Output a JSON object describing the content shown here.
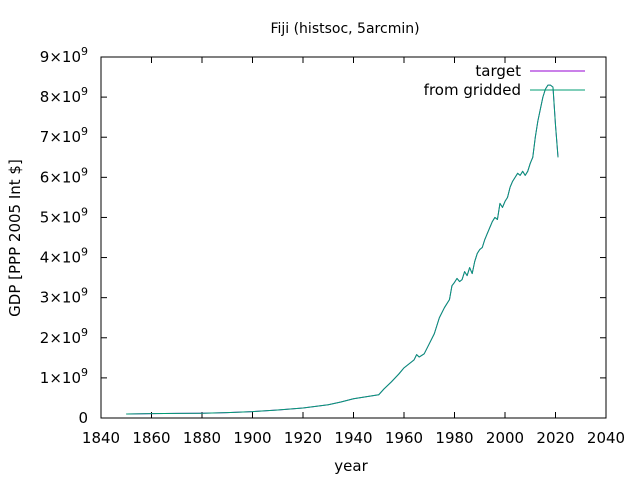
{
  "chart_data": {
    "type": "line",
    "title": "Fiji (histsoc, 5arcmin)",
    "xlabel": "year",
    "ylabel": "GDP [PPP 2005 Int $]",
    "xlim": [
      1840,
      2040
    ],
    "ylim": [
      0,
      9000000000
    ],
    "x_ticks": [
      {
        "value": 1840,
        "label": "1840"
      },
      {
        "value": 1860,
        "label": "1860"
      },
      {
        "value": 1880,
        "label": "1880"
      },
      {
        "value": 1900,
        "label": "1900"
      },
      {
        "value": 1920,
        "label": "1920"
      },
      {
        "value": 1940,
        "label": "1940"
      },
      {
        "value": 1960,
        "label": "1960"
      },
      {
        "value": 1980,
        "label": "1980"
      },
      {
        "value": 2000,
        "label": "2000"
      },
      {
        "value": 2020,
        "label": "2020"
      },
      {
        "value": 2040,
        "label": "2040"
      }
    ],
    "y_ticks": [
      {
        "value": 0,
        "mant": "0",
        "exp": ""
      },
      {
        "value": 1000000000,
        "mant": "1×10",
        "exp": "9"
      },
      {
        "value": 2000000000,
        "mant": "2×10",
        "exp": "9"
      },
      {
        "value": 3000000000,
        "mant": "3×10",
        "exp": "9"
      },
      {
        "value": 4000000000,
        "mant": "4×10",
        "exp": "9"
      },
      {
        "value": 5000000000,
        "mant": "5×10",
        "exp": "9"
      },
      {
        "value": 6000000000,
        "mant": "6×10",
        "exp": "9"
      },
      {
        "value": 7000000000,
        "mant": "7×10",
        "exp": "9"
      },
      {
        "value": 8000000000,
        "mant": "8×10",
        "exp": "9"
      },
      {
        "value": 9000000000,
        "mant": "9×10",
        "exp": "9"
      }
    ],
    "grid": false,
    "legend_position": "top-right",
    "series": [
      {
        "name": "target",
        "color": "#9400d3",
        "x": [
          1850,
          1860,
          1870,
          1880,
          1890,
          1900,
          1910,
          1920,
          1930,
          1935,
          1940,
          1945,
          1950,
          1952,
          1955,
          1958,
          1960,
          1962,
          1964,
          1965,
          1966,
          1968,
          1970,
          1972,
          1974,
          1976,
          1978,
          1979,
          1980,
          1981,
          1982,
          1983,
          1984,
          1985,
          1986,
          1987,
          1988,
          1989,
          1990,
          1991,
          1992,
          1993,
          1994,
          1995,
          1996,
          1997,
          1998,
          1999,
          2000,
          2001,
          2002,
          2003,
          2004,
          2005,
          2006,
          2007,
          2008,
          2009,
          2010,
          2011,
          2012,
          2013,
          2014,
          2015,
          2016,
          2017,
          2018,
          2019,
          2020,
          2021
        ],
        "y": [
          100000000,
          110000000,
          115000000,
          120000000,
          135000000,
          160000000,
          200000000,
          250000000,
          330000000,
          400000000,
          480000000,
          530000000,
          580000000,
          720000000,
          900000000,
          1100000000,
          1250000000,
          1350000000,
          1450000000,
          1580000000,
          1520000000,
          1600000000,
          1850000000,
          2100000000,
          2500000000,
          2750000000,
          2950000000,
          3300000000,
          3380000000,
          3480000000,
          3400000000,
          3450000000,
          3650000000,
          3550000000,
          3750000000,
          3600000000,
          3900000000,
          4100000000,
          4200000000,
          4250000000,
          4450000000,
          4600000000,
          4750000000,
          4900000000,
          5000000000,
          4950000000,
          5350000000,
          5250000000,
          5400000000,
          5500000000,
          5750000000,
          5900000000,
          6000000000,
          6100000000,
          6050000000,
          6150000000,
          6050000000,
          6150000000,
          6350000000,
          6500000000,
          7000000000,
          7400000000,
          7700000000,
          8000000000,
          8200000000,
          8300000000,
          8300000000,
          8250000000,
          7300000000,
          6500000000
        ]
      },
      {
        "name": "from gridded",
        "color": "#009e73",
        "x": [
          1850,
          1860,
          1870,
          1880,
          1890,
          1900,
          1910,
          1920,
          1930,
          1935,
          1940,
          1945,
          1950,
          1952,
          1955,
          1958,
          1960,
          1962,
          1964,
          1965,
          1966,
          1968,
          1970,
          1972,
          1974,
          1976,
          1978,
          1979,
          1980,
          1981,
          1982,
          1983,
          1984,
          1985,
          1986,
          1987,
          1988,
          1989,
          1990,
          1991,
          1992,
          1993,
          1994,
          1995,
          1996,
          1997,
          1998,
          1999,
          2000,
          2001,
          2002,
          2003,
          2004,
          2005,
          2006,
          2007,
          2008,
          2009,
          2010,
          2011,
          2012,
          2013,
          2014,
          2015,
          2016,
          2017,
          2018,
          2019,
          2020,
          2021
        ],
        "y": [
          100000000,
          110000000,
          115000000,
          120000000,
          135000000,
          160000000,
          200000000,
          250000000,
          330000000,
          400000000,
          480000000,
          530000000,
          580000000,
          720000000,
          900000000,
          1100000000,
          1250000000,
          1350000000,
          1450000000,
          1580000000,
          1520000000,
          1600000000,
          1850000000,
          2100000000,
          2500000000,
          2750000000,
          2950000000,
          3300000000,
          3380000000,
          3480000000,
          3400000000,
          3450000000,
          3650000000,
          3550000000,
          3750000000,
          3600000000,
          3900000000,
          4100000000,
          4200000000,
          4250000000,
          4450000000,
          4600000000,
          4750000000,
          4900000000,
          5000000000,
          4950000000,
          5350000000,
          5250000000,
          5400000000,
          5500000000,
          5750000000,
          5900000000,
          6000000000,
          6100000000,
          6050000000,
          6150000000,
          6050000000,
          6150000000,
          6350000000,
          6500000000,
          7000000000,
          7400000000,
          7700000000,
          8000000000,
          8200000000,
          8300000000,
          8300000000,
          8250000000,
          7300000000,
          6500000000
        ]
      }
    ]
  }
}
